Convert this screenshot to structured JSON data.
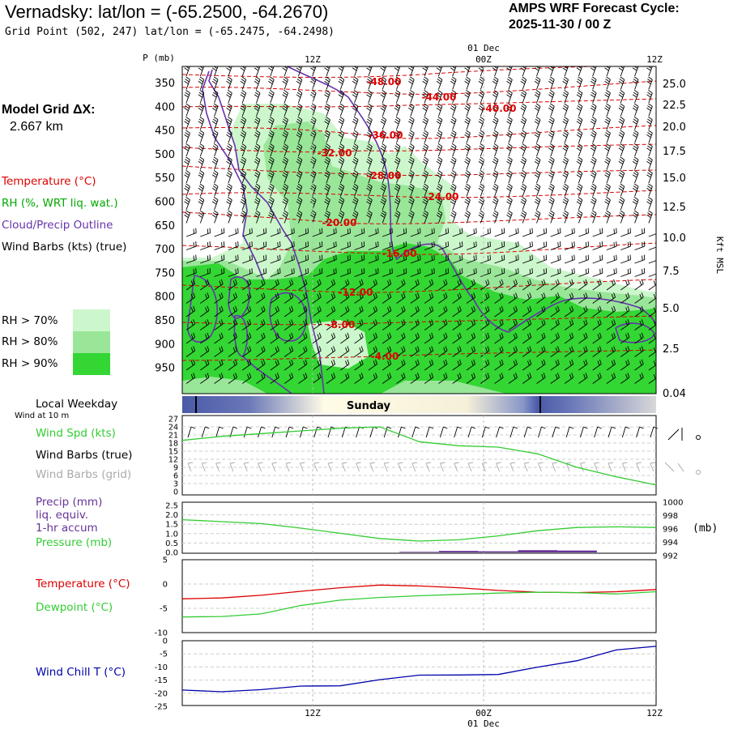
{
  "header": {
    "title": "Vernadsky:  lat/lon = (-65.2500, -64.2670)",
    "grid_point": "Grid Point (502, 247) lat/lon = (-65.2475, -64.2498)",
    "cycle_line1": "AMPS WRF Forecast Cycle:",
    "cycle_line2": "2025-11-30 / 00  Z"
  },
  "left_legend": {
    "model_grid_line1": "Model Grid ΔX:",
    "model_grid_line2": "2.667 km",
    "temperature": "Temperature (°C)",
    "rh": "RH (%, WRT liq. wat.)",
    "cloud": "Cloud/Precip Outline",
    "wind_barbs": "Wind Barbs (kts) (true)",
    "rh70": "RH > 70%",
    "rh80": "RH > 80%",
    "rh90": "RH > 90%",
    "rh_colors": [
      "#ccf7cc",
      "#99e699",
      "#33d633"
    ],
    "local_weekday": "Local Weekday",
    "wind_at_10m": "Wind at 10 m",
    "wind_spd": "Wind Spd (kts)",
    "wind_barbs_true": "Wind Barbs (true)",
    "wind_barbs_grid": "Wind Barbs (grid)",
    "precip": "Precip (mm)",
    "liq_equiv": "liq. equiv.",
    "accum": "1-hr accum",
    "pressure": "Pressure (mb)",
    "temperature2": "Temperature (°C)",
    "dewpoint": "Dewpoint (°C)",
    "wind_chill": "Wind Chill T (°C)"
  },
  "colors": {
    "temperature": "#dd0000",
    "rh_label": "#00aa00",
    "cloud": "#6633aa",
    "wind_speed": "#33cc33",
    "pressure": "#33cc33",
    "dewpoint": "#33cc33",
    "precip": "#663399",
    "wind_chill": "#0000aa",
    "grid_barbs": "#aaaaaa",
    "day_band": "#5566aa"
  },
  "time_axis": {
    "top_labels": [
      "12Z",
      "00Z",
      "12Z"
    ],
    "date_label": "01 Dec",
    "bottom_labels": [
      "12Z",
      "00Z",
      "12Z"
    ],
    "weekday": "Sunday"
  },
  "chart_data": [
    {
      "type": "contour",
      "name": "vertical-profile",
      "ylabel_left": "P (mb)",
      "ylabel_right": "Kft MSL",
      "pressure_ticks": [
        "350",
        "400",
        "450",
        "500",
        "550",
        "600",
        "650",
        "700",
        "750",
        "800",
        "850",
        "900",
        "950"
      ],
      "height_ticks": [
        "25.0",
        "22.5",
        "20.0",
        "17.5",
        "15.0",
        "12.5",
        "10.0",
        "7.5",
        "5.0",
        "2.5",
        "0.04"
      ],
      "temperature_contour_labels": [
        "-48.00",
        "-44.00",
        "-40.00",
        "-36.00",
        "-32.00",
        "-28.00",
        "-24.00",
        "-20.00",
        "-16.00",
        "-12.00",
        "-8.00",
        "-4.00"
      ]
    },
    {
      "type": "line",
      "name": "wind-speed",
      "ylim": [
        0,
        27
      ],
      "yticks": [
        "27",
        "24",
        "21",
        "18",
        "15",
        "12",
        "9",
        "6",
        "3",
        "0"
      ],
      "x_hours": [
        0,
        3,
        6,
        9,
        12,
        15,
        18,
        21,
        24,
        27,
        30,
        33,
        36
      ],
      "values": [
        19,
        20.5,
        21.5,
        22.5,
        23.5,
        24,
        18.5,
        17,
        16.5,
        14,
        9,
        5.5,
        2.5
      ]
    },
    {
      "type": "line+bar",
      "name": "precip-pressure",
      "precip_yticks": [
        "2.5",
        "2.0",
        "1.5",
        "1.0",
        "0.5",
        "0.0"
      ],
      "pressure_yticks": [
        "1000",
        "998",
        "996",
        "994",
        "992"
      ],
      "right_unit": "(mb)",
      "x_hours": [
        0,
        3,
        6,
        9,
        12,
        15,
        18,
        21,
        24,
        27,
        30,
        33,
        36
      ],
      "pressure_mb": [
        997.3,
        997.0,
        996.7,
        996.0,
        995.2,
        994.4,
        994.0,
        994.2,
        994.8,
        995.6,
        996.1,
        996.2,
        996.1
      ],
      "precip_mm": [
        0,
        0,
        0,
        0,
        0,
        0,
        0.03,
        0.08,
        0.06,
        0.12,
        0.1,
        0,
        0
      ]
    },
    {
      "type": "line",
      "name": "temperature-dewpoint",
      "ylim": [
        -10,
        5
      ],
      "yticks": [
        "5",
        "0",
        "-5",
        "-10"
      ],
      "x_hours": [
        0,
        3,
        6,
        9,
        12,
        15,
        18,
        21,
        24,
        27,
        30,
        33,
        36
      ],
      "temperature_c": [
        -3.1,
        -2.9,
        -2.3,
        -1.4,
        -0.6,
        0.0,
        -0.2,
        -0.6,
        -1.2,
        -1.6,
        -1.7,
        -1.5,
        -1.0
      ],
      "dewpoint_c": [
        -7.2,
        -7.1,
        -6.5,
        -4.6,
        -3.4,
        -2.8,
        -2.4,
        -2.1,
        -1.8,
        -1.6,
        -1.7,
        -2.0,
        -1.5
      ]
    },
    {
      "type": "line",
      "name": "wind-chill",
      "ylim": [
        -25,
        0
      ],
      "yticks": [
        "0",
        "-5",
        "-10",
        "-15",
        "-20",
        "-25"
      ],
      "x_hours": [
        0,
        3,
        6,
        9,
        12,
        15,
        18,
        21,
        24,
        27,
        30,
        33,
        36
      ],
      "values": [
        -19.5,
        -20.2,
        -19.3,
        -17.8,
        -17.7,
        -15.1,
        -13.2,
        -13.1,
        -12.9,
        -9.8,
        -7.1,
        -2.5,
        -1.0
      ]
    }
  ]
}
